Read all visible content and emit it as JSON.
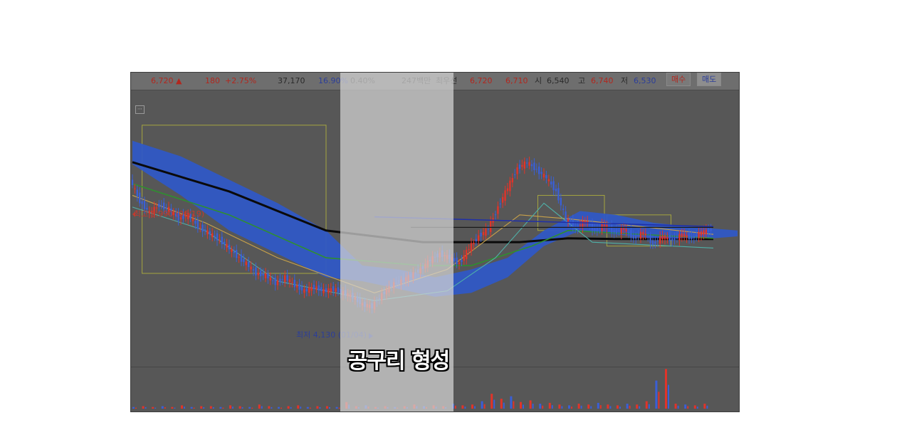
{
  "info_bar": {
    "price": "6,720 ▲",
    "change": "180",
    "change_pct": "+2.75%",
    "volume": "37,170",
    "turnover_pct": "16.90%",
    "ratio_pct": "0.40%",
    "amount": "247백만",
    "best_bid_label": "최우선",
    "best_ask": "6,720",
    "best_bid": "6,710",
    "open_label": "시",
    "open": "6,540",
    "high_label": "고",
    "high": "6,740",
    "low_label": "저",
    "low": "6,530",
    "buy_button": "매수",
    "sell_button": "매도"
  },
  "annotations": {
    "high_marker": "최고 8,990 (06/19)",
    "low_marker": "최저 4,130 (01/04)",
    "caption": "공구리 형성"
  },
  "colors": {
    "chart_bg": "#575757",
    "up_candle": "#e0342a",
    "down_candle": "#3a5fd6",
    "cloud": "#2f58c8",
    "long_ma": "#0a0a0a",
    "mid_ma": "#2f8f2f",
    "short_ma_1": "#c9a24a",
    "short_ma_2": "#4fb0a8",
    "trendline": "#1f2fa8",
    "box": "#b8b83a"
  },
  "chart_data": {
    "type": "candlestick",
    "title": "",
    "xlabel": "",
    "ylabel": "",
    "ylim": [
      3300,
      10200
    ],
    "grid": false,
    "price_path": [
      [
        0,
        8000
      ],
      [
        8,
        7450
      ],
      [
        16,
        7150
      ],
      [
        24,
        7350
      ],
      [
        32,
        7250
      ],
      [
        40,
        7000
      ],
      [
        48,
        7100
      ],
      [
        56,
        6800
      ],
      [
        64,
        6650
      ],
      [
        72,
        6500
      ],
      [
        80,
        6300
      ],
      [
        88,
        6050
      ],
      [
        96,
        5850
      ],
      [
        104,
        5600
      ],
      [
        112,
        5550
      ],
      [
        120,
        5350
      ],
      [
        128,
        5500
      ],
      [
        136,
        5300
      ],
      [
        144,
        5150
      ],
      [
        152,
        5250
      ],
      [
        160,
        5150
      ],
      [
        168,
        5200
      ],
      [
        176,
        5100
      ],
      [
        184,
        5000
      ],
      [
        192,
        4800
      ],
      [
        200,
        4750
      ],
      [
        208,
        5050
      ],
      [
        216,
        5300
      ],
      [
        224,
        5400
      ],
      [
        232,
        5550
      ],
      [
        240,
        5700
      ],
      [
        248,
        5950
      ],
      [
        256,
        6100
      ],
      [
        264,
        6000
      ],
      [
        272,
        5850
      ],
      [
        280,
        6250
      ],
      [
        288,
        6550
      ],
      [
        296,
        6750
      ],
      [
        304,
        7300
      ],
      [
        312,
        7800
      ],
      [
        320,
        8300
      ],
      [
        328,
        8450
      ],
      [
        336,
        8250
      ],
      [
        344,
        8050
      ],
      [
        352,
        7700
      ],
      [
        360,
        7000
      ],
      [
        368,
        6750
      ],
      [
        376,
        6950
      ],
      [
        384,
        6700
      ],
      [
        392,
        6850
      ],
      [
        400,
        6650
      ],
      [
        408,
        6750
      ],
      [
        416,
        6500
      ],
      [
        424,
        6650
      ],
      [
        432,
        6350
      ],
      [
        440,
        6550
      ],
      [
        448,
        6450
      ],
      [
        456,
        6600
      ],
      [
        464,
        6500
      ],
      [
        472,
        6650
      ],
      [
        480,
        6720
      ]
    ],
    "moving_averages": [
      {
        "name": "",
        "color": "#0a0a0a",
        "points": [
          [
            0,
            8450
          ],
          [
            80,
            7700
          ],
          [
            160,
            6700
          ],
          [
            240,
            6400
          ],
          [
            320,
            6400
          ],
          [
            360,
            6500
          ],
          [
            400,
            6480
          ],
          [
            480,
            6480
          ]
        ]
      },
      {
        "name": "",
        "color": "#2f8f2f",
        "points": [
          [
            0,
            7900
          ],
          [
            80,
            7100
          ],
          [
            160,
            6000
          ],
          [
            240,
            5800
          ],
          [
            280,
            5800
          ],
          [
            330,
            6300
          ],
          [
            360,
            6700
          ],
          [
            480,
            6500
          ]
        ]
      },
      {
        "name": "",
        "color": "#c9a24a",
        "points": [
          [
            0,
            7600
          ],
          [
            60,
            6900
          ],
          [
            120,
            6000
          ],
          [
            200,
            5100
          ],
          [
            260,
            5700
          ],
          [
            320,
            7100
          ],
          [
            360,
            7000
          ],
          [
            480,
            6600
          ]
        ]
      },
      {
        "name": "",
        "color": "#4fb0a8",
        "points": [
          [
            0,
            7300
          ],
          [
            60,
            6700
          ],
          [
            120,
            5400
          ],
          [
            200,
            4900
          ],
          [
            260,
            5150
          ],
          [
            300,
            6000
          ],
          [
            340,
            7400
          ],
          [
            380,
            6400
          ],
          [
            480,
            6250
          ]
        ]
      }
    ],
    "cloud": [
      [
        0,
        9000,
        8400
      ],
      [
        40,
        8600,
        7600
      ],
      [
        80,
        8000,
        6700
      ],
      [
        120,
        7400,
        6100
      ],
      [
        160,
        6700,
        5500
      ],
      [
        190,
        5800,
        5400
      ],
      [
        220,
        5700,
        5200
      ],
      [
        250,
        5500,
        5000
      ],
      [
        280,
        5700,
        5100
      ],
      [
        310,
        6000,
        5500
      ],
      [
        340,
        6700,
        6300
      ],
      [
        370,
        7200,
        6700
      ],
      [
        400,
        7100,
        6600
      ],
      [
        430,
        6900,
        6500
      ],
      [
        460,
        6800,
        6450
      ],
      [
        500,
        6700,
        6550
      ]
    ],
    "trendline": [
      [
        200,
        7050
      ],
      [
        480,
        6800
      ]
    ],
    "volume": [
      2,
      3,
      2,
      3,
      2,
      4,
      2,
      3,
      3,
      2,
      4,
      3,
      2,
      5,
      3,
      2,
      3,
      4,
      2,
      3,
      3,
      2,
      8,
      3,
      4,
      2,
      3,
      2,
      3,
      5,
      3,
      4,
      3,
      6,
      4,
      5,
      9,
      18,
      12,
      15,
      8,
      10,
      6,
      7,
      5,
      4,
      6,
      5,
      7,
      5,
      4,
      6,
      5,
      9,
      34,
      48,
      6,
      5,
      4,
      6
    ]
  }
}
